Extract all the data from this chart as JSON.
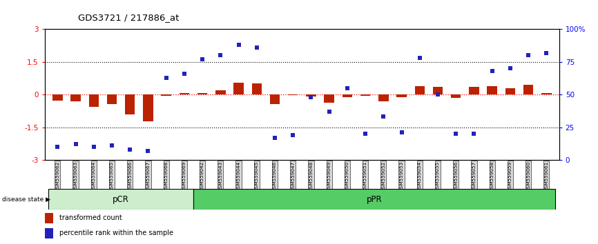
{
  "title": "GDS3721 / 217886_at",
  "samples": [
    "GSM559062",
    "GSM559063",
    "GSM559064",
    "GSM559065",
    "GSM559066",
    "GSM559067",
    "GSM559068",
    "GSM559069",
    "GSM559042",
    "GSM559043",
    "GSM559044",
    "GSM559045",
    "GSM559046",
    "GSM559047",
    "GSM559048",
    "GSM559049",
    "GSM559050",
    "GSM559051",
    "GSM559052",
    "GSM559053",
    "GSM559054",
    "GSM559055",
    "GSM559056",
    "GSM559057",
    "GSM559058",
    "GSM559059",
    "GSM559060",
    "GSM559061"
  ],
  "transformed_count": [
    -0.28,
    -0.32,
    -0.55,
    -0.45,
    -0.9,
    -1.22,
    -0.05,
    0.07,
    0.08,
    0.18,
    0.55,
    0.52,
    -0.45,
    -0.04,
    -0.1,
    -0.38,
    -0.12,
    -0.05,
    -0.3,
    -0.12,
    0.38,
    0.35,
    -0.15,
    0.35,
    0.38,
    0.3,
    0.45,
    0.08
  ],
  "percentile_rank": [
    10,
    12,
    10,
    11,
    8,
    7,
    63,
    66,
    77,
    80,
    88,
    86,
    17,
    19,
    48,
    37,
    55,
    20,
    33,
    21,
    78,
    50,
    20,
    20,
    68,
    70,
    80,
    82
  ],
  "pcr_count": 8,
  "ppr_count": 20,
  "ylim_left": [
    -3,
    3
  ],
  "ylim_right": [
    0,
    100
  ],
  "bar_color": "#bb2200",
  "point_color": "#2222bb",
  "pcr_light_color": "#cceecc",
  "ppr_color": "#66cc66",
  "label_transformed": "transformed count",
  "label_percentile": "percentile rank within the sample",
  "disease_state_label": "disease state",
  "pcr_label": "pCR",
  "ppr_label": "pPR"
}
